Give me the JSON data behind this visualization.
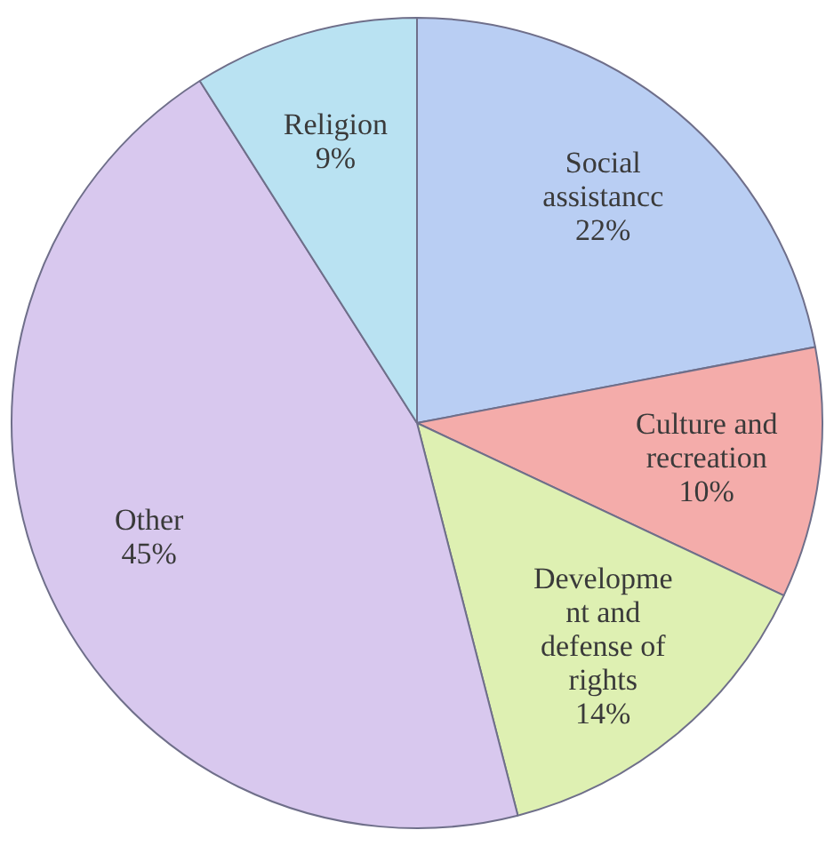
{
  "chart_data": {
    "type": "pie",
    "categories": [
      "Social assistancc",
      "Culture and recreation",
      "Developme nt and defense of rights",
      "Other",
      "Religion"
    ],
    "values": [
      22,
      10,
      14,
      45,
      9
    ],
    "value_labels": [
      "22%",
      "10%",
      "14%",
      "45%",
      "9%"
    ],
    "colors": [
      "#b9cef3",
      "#f4acaa",
      "#def0b2",
      "#d8c8ee",
      "#b9e2f2"
    ],
    "legend": false
  }
}
